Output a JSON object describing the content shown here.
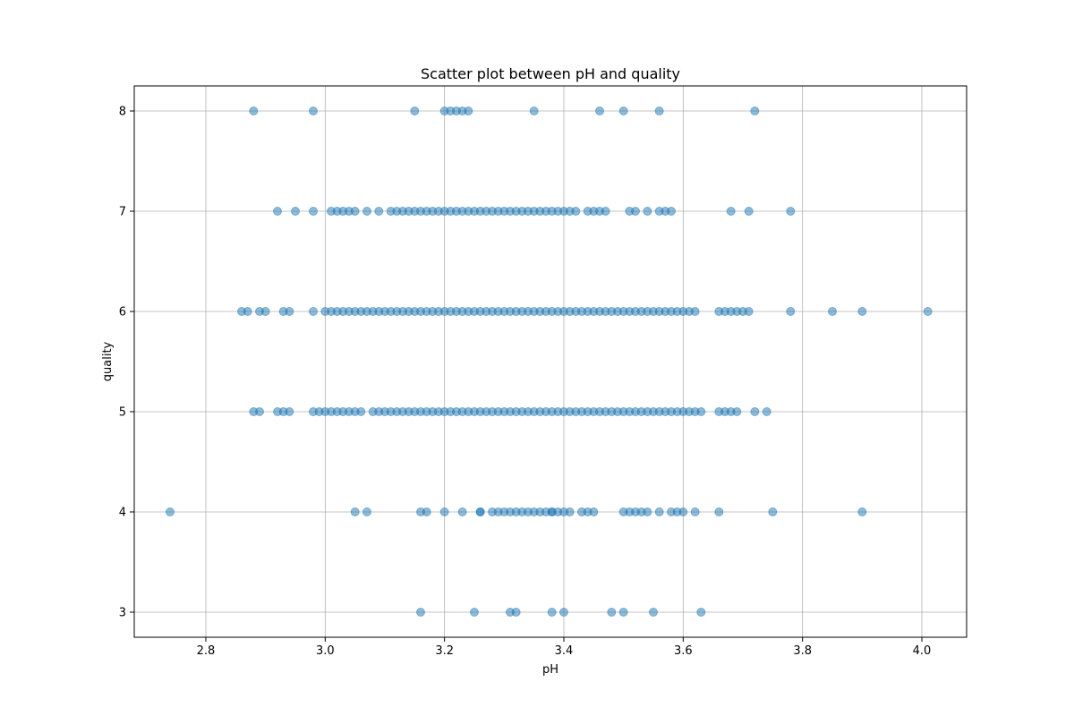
{
  "chart_data": {
    "type": "scatter",
    "title": "Scatter plot between pH and quality",
    "xlabel": "pH",
    "ylabel": "quality",
    "xlim": [
      2.68,
      4.075
    ],
    "ylim": [
      2.75,
      8.25
    ],
    "x_ticks": [
      "2.8",
      "3.0",
      "3.2",
      "3.4",
      "3.6",
      "3.8",
      "4.0"
    ],
    "y_ticks": [
      "3",
      "4",
      "5",
      "6",
      "7",
      "8"
    ],
    "grid": true,
    "marker_color": "#1f77b4",
    "marker_alpha": 0.5,
    "points": [
      {
        "quality": 3,
        "ph": [
          3.16,
          3.25,
          3.31,
          3.32,
          3.38,
          3.4,
          3.48,
          3.5,
          3.55,
          3.63
        ]
      },
      {
        "quality": 4,
        "ph": [
          2.74,
          3.05,
          3.07,
          3.16,
          3.17,
          3.2,
          3.23,
          3.26,
          3.26,
          3.28,
          3.29,
          3.3,
          3.31,
          3.32,
          3.33,
          3.34,
          3.35,
          3.36,
          3.37,
          3.38,
          3.38,
          3.39,
          3.4,
          3.41,
          3.43,
          3.44,
          3.45,
          3.5,
          3.51,
          3.52,
          3.53,
          3.54,
          3.56,
          3.58,
          3.59,
          3.6,
          3.62,
          3.66,
          3.75,
          3.9
        ]
      },
      {
        "quality": 5,
        "ph": [
          2.88,
          2.89,
          2.92,
          2.93,
          2.94,
          2.98,
          2.99,
          3.0,
          3.01,
          3.02,
          3.03,
          3.04,
          3.05,
          3.06,
          3.08,
          3.09,
          3.1,
          3.11,
          3.12,
          3.13,
          3.14,
          3.15,
          3.16,
          3.17,
          3.18,
          3.19,
          3.2,
          3.21,
          3.22,
          3.23,
          3.24,
          3.25,
          3.26,
          3.27,
          3.28,
          3.29,
          3.3,
          3.31,
          3.32,
          3.33,
          3.34,
          3.35,
          3.36,
          3.37,
          3.38,
          3.39,
          3.4,
          3.41,
          3.42,
          3.43,
          3.44,
          3.45,
          3.46,
          3.47,
          3.48,
          3.49,
          3.5,
          3.51,
          3.52,
          3.53,
          3.54,
          3.55,
          3.56,
          3.57,
          3.58,
          3.59,
          3.6,
          3.61,
          3.62,
          3.63,
          3.66,
          3.67,
          3.68,
          3.69,
          3.72,
          3.74
        ]
      },
      {
        "quality": 6,
        "ph": [
          2.86,
          2.87,
          2.89,
          2.9,
          2.93,
          2.94,
          2.98,
          3.0,
          3.01,
          3.02,
          3.03,
          3.04,
          3.05,
          3.06,
          3.07,
          3.08,
          3.09,
          3.1,
          3.11,
          3.12,
          3.13,
          3.14,
          3.15,
          3.16,
          3.17,
          3.18,
          3.19,
          3.2,
          3.21,
          3.22,
          3.23,
          3.24,
          3.25,
          3.26,
          3.27,
          3.28,
          3.29,
          3.3,
          3.31,
          3.32,
          3.33,
          3.34,
          3.35,
          3.36,
          3.37,
          3.38,
          3.39,
          3.4,
          3.41,
          3.42,
          3.43,
          3.44,
          3.45,
          3.46,
          3.47,
          3.48,
          3.49,
          3.5,
          3.51,
          3.52,
          3.53,
          3.54,
          3.55,
          3.56,
          3.57,
          3.58,
          3.59,
          3.6,
          3.61,
          3.62,
          3.66,
          3.67,
          3.68,
          3.69,
          3.7,
          3.71,
          3.78,
          3.85,
          3.9,
          4.01
        ]
      },
      {
        "quality": 7,
        "ph": [
          2.92,
          2.95,
          2.98,
          3.01,
          3.02,
          3.03,
          3.04,
          3.05,
          3.07,
          3.09,
          3.11,
          3.12,
          3.13,
          3.14,
          3.15,
          3.16,
          3.17,
          3.18,
          3.19,
          3.2,
          3.21,
          3.22,
          3.23,
          3.24,
          3.25,
          3.26,
          3.27,
          3.28,
          3.29,
          3.3,
          3.31,
          3.32,
          3.33,
          3.34,
          3.35,
          3.36,
          3.37,
          3.38,
          3.39,
          3.4,
          3.41,
          3.42,
          3.44,
          3.45,
          3.46,
          3.47,
          3.51,
          3.52,
          3.54,
          3.56,
          3.57,
          3.58,
          3.68,
          3.71,
          3.78
        ]
      },
      {
        "quality": 8,
        "ph": [
          2.88,
          2.98,
          3.15,
          3.2,
          3.21,
          3.22,
          3.23,
          3.24,
          3.35,
          3.46,
          3.5,
          3.56,
          3.72
        ]
      }
    ]
  }
}
